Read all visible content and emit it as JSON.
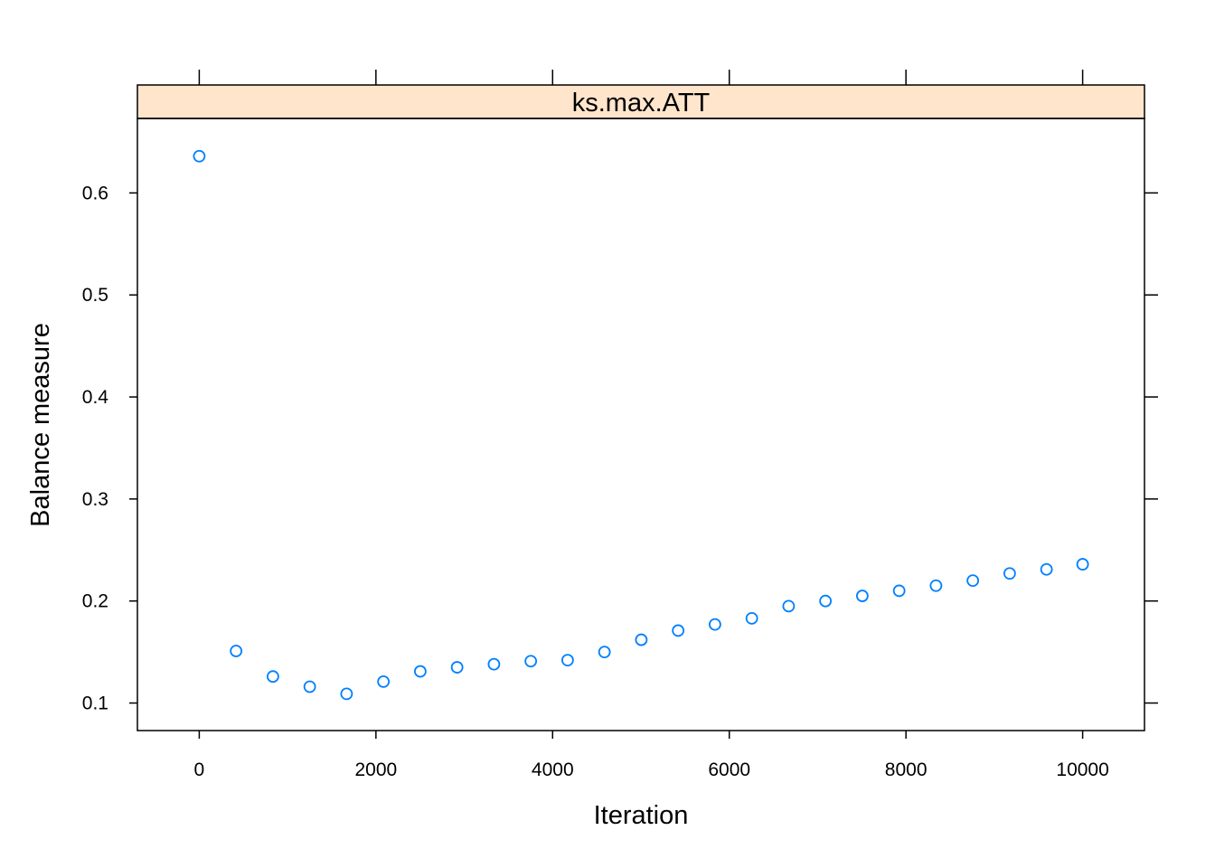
{
  "chart_data": {
    "type": "scatter",
    "panel_title": "ks.max.ATT",
    "xlabel": "Iteration",
    "ylabel": "Balance measure",
    "x_ticks": [
      0,
      2000,
      4000,
      6000,
      8000,
      10000
    ],
    "y_ticks": [
      0.1,
      0.2,
      0.3,
      0.4,
      0.5,
      0.6
    ],
    "x_tick_labels": [
      "0",
      "2000",
      "4000",
      "6000",
      "8000",
      "10000"
    ],
    "y_tick_labels": [
      "0.1",
      "0.2",
      "0.3",
      "0.4",
      "0.5",
      "0.6"
    ],
    "xlim": [
      -700,
      10700
    ],
    "ylim": [
      0.073,
      0.673
    ],
    "grid": false,
    "colors": {
      "point": "#0080ff",
      "strip": "#ffe5cc",
      "frame": "#000000"
    },
    "points": [
      {
        "x": 0,
        "y": 0.636
      },
      {
        "x": 417,
        "y": 0.151
      },
      {
        "x": 834,
        "y": 0.126
      },
      {
        "x": 1251,
        "y": 0.116
      },
      {
        "x": 1668,
        "y": 0.109
      },
      {
        "x": 2085,
        "y": 0.121
      },
      {
        "x": 2502,
        "y": 0.131
      },
      {
        "x": 2919,
        "y": 0.135
      },
      {
        "x": 3336,
        "y": 0.138
      },
      {
        "x": 3753,
        "y": 0.141
      },
      {
        "x": 4170,
        "y": 0.142
      },
      {
        "x": 4587,
        "y": 0.15
      },
      {
        "x": 5004,
        "y": 0.162
      },
      {
        "x": 5421,
        "y": 0.171
      },
      {
        "x": 5838,
        "y": 0.177
      },
      {
        "x": 6255,
        "y": 0.183
      },
      {
        "x": 6672,
        "y": 0.195
      },
      {
        "x": 7089,
        "y": 0.2
      },
      {
        "x": 7506,
        "y": 0.205
      },
      {
        "x": 7923,
        "y": 0.21
      },
      {
        "x": 8340,
        "y": 0.215
      },
      {
        "x": 8757,
        "y": 0.22
      },
      {
        "x": 9174,
        "y": 0.227
      },
      {
        "x": 9591,
        "y": 0.231
      },
      {
        "x": 10000,
        "y": 0.236
      }
    ]
  }
}
